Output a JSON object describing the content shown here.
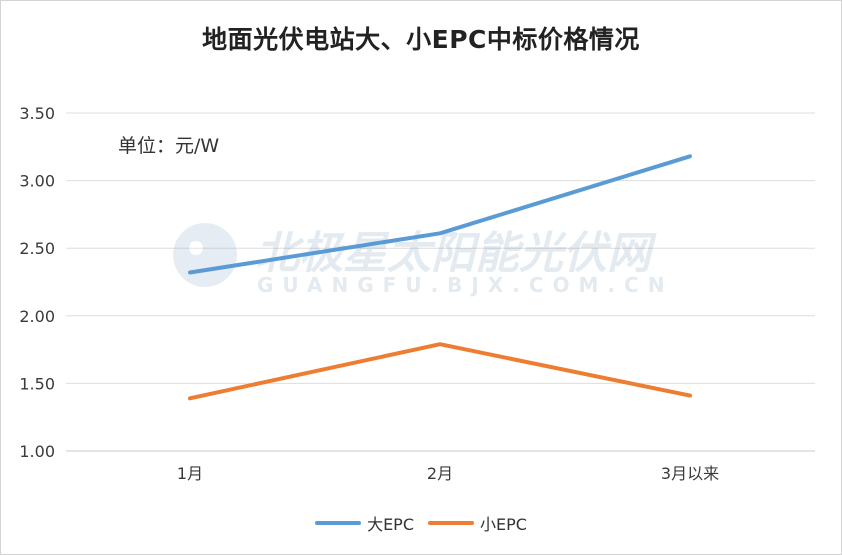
{
  "chart_data": {
    "type": "line",
    "title": "地面光伏电站大、小EPC中标价格情况",
    "annotation": "单位：元/W",
    "xlabel": "",
    "ylabel": "",
    "categories": [
      "1月",
      "2月",
      "3月以来"
    ],
    "ylim": [
      1.0,
      3.5
    ],
    "yticks": [
      "1.00",
      "1.50",
      "2.00",
      "2.50",
      "3.00",
      "3.50"
    ],
    "grid": true,
    "legend_position": "bottom",
    "series": [
      {
        "name": "大EPC",
        "color": "#5b9bd5",
        "values": [
          2.32,
          2.61,
          3.18
        ]
      },
      {
        "name": "小EPC",
        "color": "#ed7d31",
        "values": [
          1.39,
          1.79,
          1.41
        ]
      }
    ],
    "watermark": {
      "main": "北极星太阳能光伏网",
      "sub": "GUANGFU.BJX.COM.CN"
    }
  }
}
